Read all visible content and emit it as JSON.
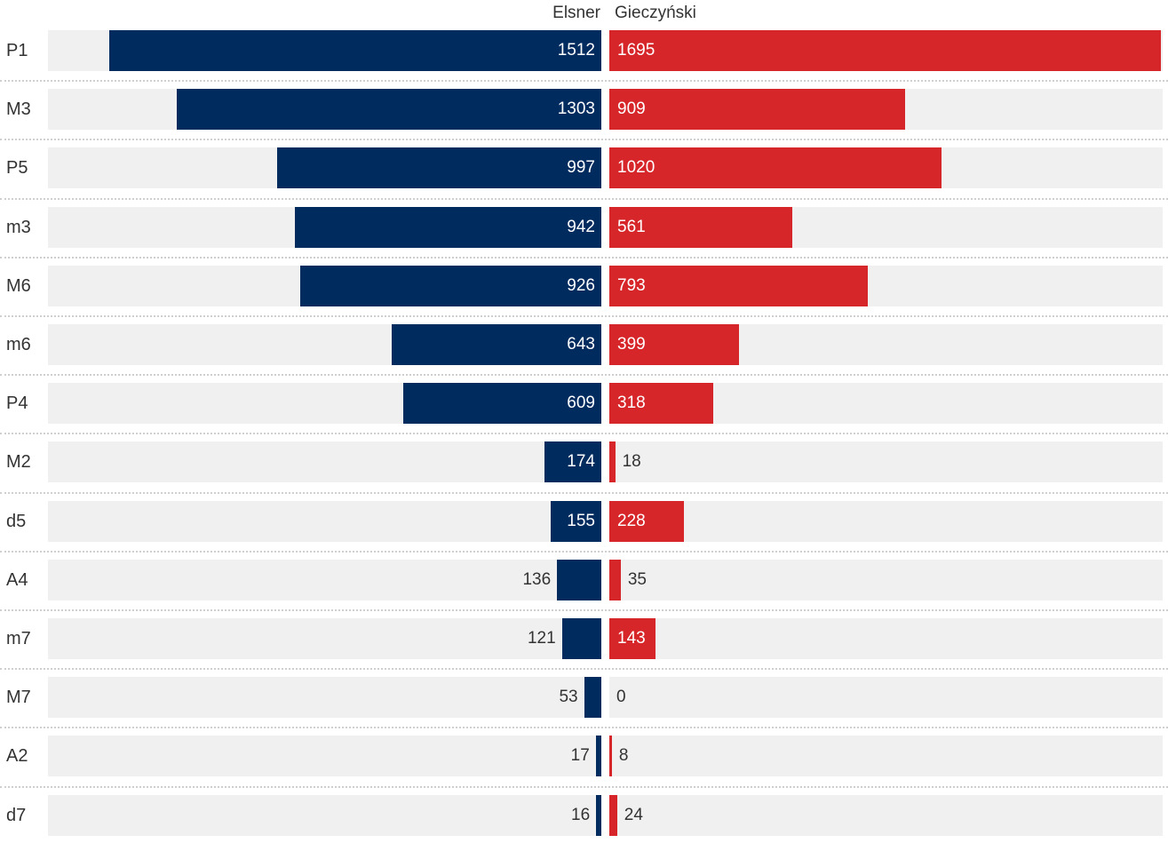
{
  "chart_data": {
    "type": "bar",
    "orientation": "horizontal-diverging",
    "series": [
      {
        "name": "Elsner",
        "color": "#002b5f",
        "values": [
          1512,
          1303,
          997,
          942,
          926,
          643,
          609,
          174,
          155,
          136,
          121,
          53,
          17,
          16
        ]
      },
      {
        "name": "Gieczyński",
        "color": "#d7262a",
        "values": [
          1695,
          909,
          1020,
          561,
          793,
          399,
          318,
          18,
          228,
          35,
          143,
          0,
          8,
          24
        ]
      }
    ],
    "categories": [
      "P1",
      "M3",
      "P5",
      "m3",
      "M6",
      "m6",
      "P4",
      "M2",
      "d5",
      "A4",
      "m7",
      "M7",
      "A2",
      "d7"
    ],
    "xlim": [
      0,
      1700
    ],
    "track_color": "#f0f0f0",
    "grid": false,
    "legend": "top-center"
  }
}
